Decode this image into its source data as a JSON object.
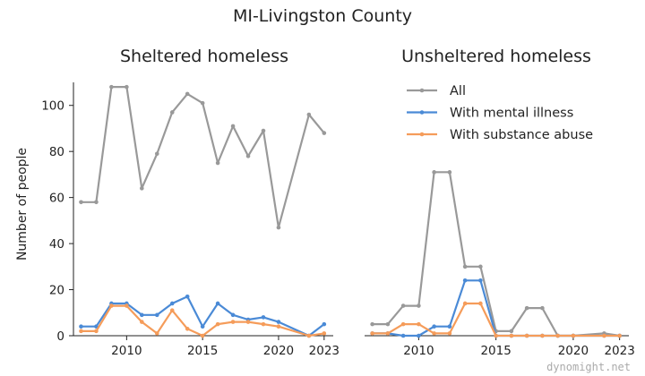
{
  "chart_data": {
    "type": "line",
    "title": "MI-Livingston County",
    "ylabel": "Number of people",
    "xlim": [
      2006.5,
      2023.6
    ],
    "ylim": [
      0,
      110
    ],
    "xticks": [
      2010,
      2015,
      2020,
      2023
    ],
    "yticks": [
      0,
      20,
      40,
      60,
      80,
      100
    ],
    "legend": {
      "placement": "inside-right-panel-top",
      "entries": [
        "All",
        "With mental illness",
        "With substance abuse"
      ]
    },
    "series_colors": {
      "All": "#999999",
      "With mental illness": "#4a8ad6",
      "With substance abuse": "#f59c5a"
    },
    "panels": [
      {
        "title": "Sheltered homeless",
        "x": [
          2007,
          2008,
          2009,
          2010,
          2011,
          2012,
          2013,
          2014,
          2015,
          2016,
          2017,
          2018,
          2019,
          2020,
          2022,
          2023
        ],
        "series": [
          {
            "name": "All",
            "values": [
              58,
              58,
              108,
              108,
              64,
              79,
              97,
              105,
              101,
              75,
              91,
              78,
              89,
              47,
              96,
              88
            ]
          },
          {
            "name": "With mental illness",
            "values": [
              4,
              4,
              14,
              14,
              9,
              9,
              14,
              17,
              4,
              14,
              9,
              7,
              8,
              6,
              0,
              5
            ]
          },
          {
            "name": "With substance abuse",
            "values": [
              2,
              2,
              13,
              13,
              6,
              1,
              11,
              3,
              0,
              5,
              6,
              6,
              5,
              4,
              0,
              1
            ]
          }
        ]
      },
      {
        "title": "Unsheltered homeless",
        "x": [
          2007,
          2008,
          2009,
          2010,
          2011,
          2012,
          2013,
          2014,
          2015,
          2016,
          2017,
          2018,
          2019,
          2020,
          2022,
          2023
        ],
        "series": [
          {
            "name": "All",
            "values": [
              5,
              5,
              13,
              13,
              71,
              71,
              30,
              30,
              2,
              2,
              12,
              12,
              0,
              0,
              1,
              0
            ]
          },
          {
            "name": "With mental illness",
            "values": [
              1,
              1,
              0,
              0,
              4,
              4,
              24,
              24,
              0,
              0,
              0,
              0,
              0,
              0,
              0,
              0
            ]
          },
          {
            "name": "With substance abuse",
            "values": [
              1,
              1,
              5,
              5,
              1,
              1,
              14,
              14,
              0,
              0,
              0,
              0,
              0,
              0,
              0,
              0
            ]
          }
        ]
      }
    ]
  },
  "watermark": "dynomight.net"
}
